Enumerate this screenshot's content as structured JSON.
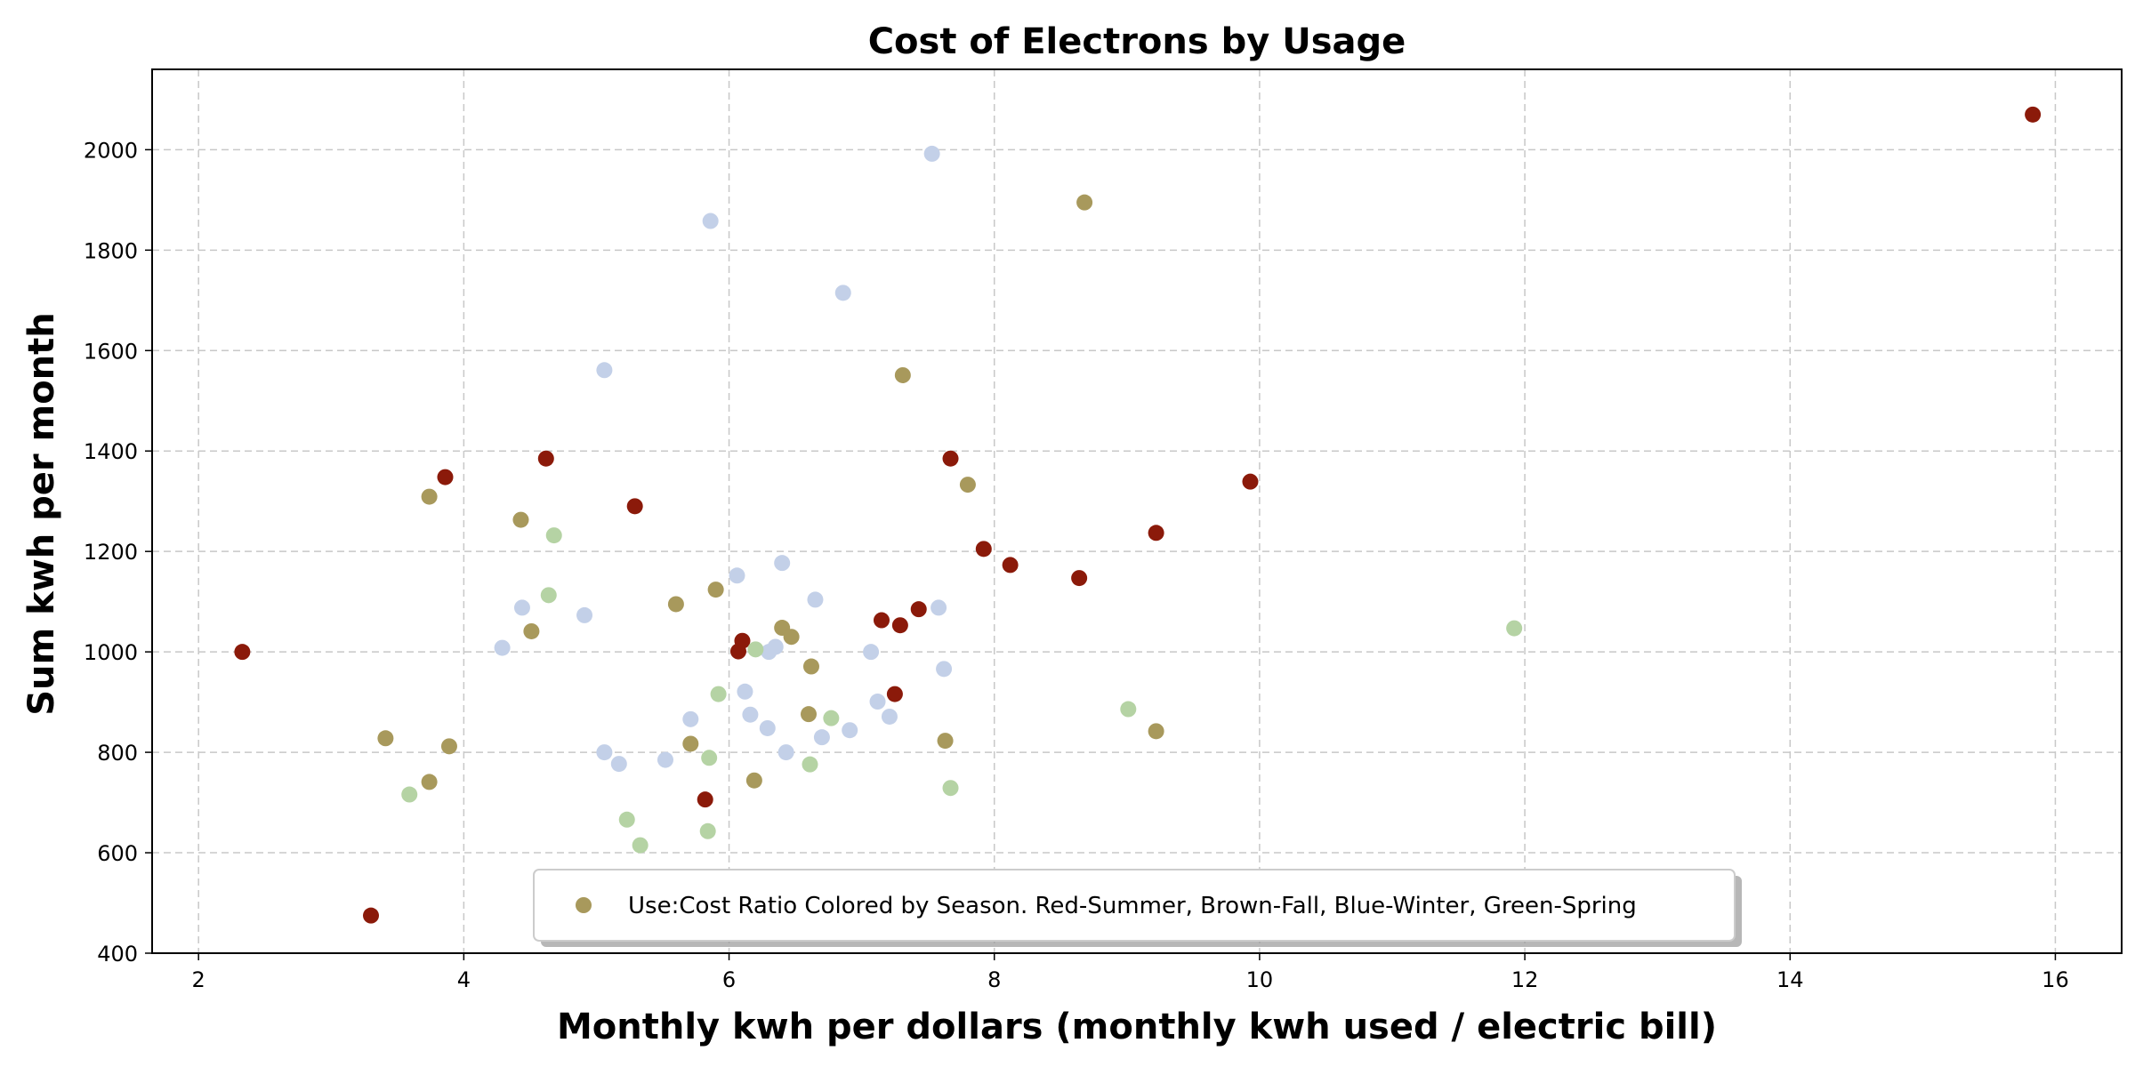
{
  "chart_data": {
    "type": "scatter",
    "title": "Cost of Electrons by Usage",
    "xlabel": "Monthly kwh per dollars (monthly kwh used / electric bill)",
    "ylabel": "Sum kwh per month",
    "xlim": [
      1.65,
      16.5
    ],
    "ylim": [
      400,
      2160
    ],
    "xticks": [
      2,
      4,
      6,
      8,
      10,
      12,
      14,
      16
    ],
    "yticks": [
      400,
      600,
      800,
      1000,
      1200,
      1400,
      1600,
      1800,
      2000
    ],
    "grid": true,
    "legend": {
      "placement": "lower-center",
      "entries": [
        {
          "label": "Use:Cost Ratio Colored by Season. Red-Summer, Brown-Fall, Blue-Winter, Green-Spring",
          "color": "#a8995c"
        }
      ]
    },
    "colors": {
      "summer": "#8b1a0a",
      "fall": "#a8995c",
      "winter": "#c3d0e8",
      "spring": "#b5d3a4"
    },
    "series": [
      {
        "season": "summer",
        "color": "#8b1a0a",
        "points": [
          {
            "x": 2.33,
            "y": 1000
          },
          {
            "x": 3.3,
            "y": 475
          },
          {
            "x": 3.86,
            "y": 1348
          },
          {
            "x": 4.62,
            "y": 1385
          },
          {
            "x": 5.29,
            "y": 1290
          },
          {
            "x": 5.82,
            "y": 706
          },
          {
            "x": 6.07,
            "y": 1001
          },
          {
            "x": 6.1,
            "y": 1022
          },
          {
            "x": 7.15,
            "y": 1063
          },
          {
            "x": 7.25,
            "y": 916
          },
          {
            "x": 7.29,
            "y": 1053
          },
          {
            "x": 7.43,
            "y": 1085
          },
          {
            "x": 7.67,
            "y": 1385
          },
          {
            "x": 7.92,
            "y": 1205
          },
          {
            "x": 8.12,
            "y": 1173
          },
          {
            "x": 8.64,
            "y": 1147
          },
          {
            "x": 9.22,
            "y": 1237
          },
          {
            "x": 9.93,
            "y": 1339
          },
          {
            "x": 15.83,
            "y": 2070
          }
        ]
      },
      {
        "season": "fall",
        "color": "#a8995c",
        "points": [
          {
            "x": 3.41,
            "y": 828
          },
          {
            "x": 3.74,
            "y": 741
          },
          {
            "x": 3.74,
            "y": 1309
          },
          {
            "x": 3.89,
            "y": 812
          },
          {
            "x": 4.43,
            "y": 1263
          },
          {
            "x": 4.51,
            "y": 1041
          },
          {
            "x": 5.6,
            "y": 1095
          },
          {
            "x": 5.71,
            "y": 817
          },
          {
            "x": 5.9,
            "y": 1124
          },
          {
            "x": 6.19,
            "y": 744
          },
          {
            "x": 6.4,
            "y": 1048
          },
          {
            "x": 6.47,
            "y": 1030
          },
          {
            "x": 6.6,
            "y": 876
          },
          {
            "x": 6.62,
            "y": 971
          },
          {
            "x": 7.31,
            "y": 1551
          },
          {
            "x": 7.63,
            "y": 823
          },
          {
            "x": 7.8,
            "y": 1333
          },
          {
            "x": 8.68,
            "y": 1895
          },
          {
            "x": 9.22,
            "y": 842
          }
        ]
      },
      {
        "season": "winter",
        "color": "#c3d0e8",
        "points": [
          {
            "x": 4.29,
            "y": 1008
          },
          {
            "x": 4.44,
            "y": 1088
          },
          {
            "x": 4.91,
            "y": 1073
          },
          {
            "x": 5.06,
            "y": 1561
          },
          {
            "x": 5.06,
            "y": 800
          },
          {
            "x": 5.17,
            "y": 777
          },
          {
            "x": 5.52,
            "y": 785
          },
          {
            "x": 5.71,
            "y": 866
          },
          {
            "x": 5.86,
            "y": 1858
          },
          {
            "x": 6.06,
            "y": 1152
          },
          {
            "x": 6.12,
            "y": 921
          },
          {
            "x": 6.16,
            "y": 875
          },
          {
            "x": 6.29,
            "y": 848
          },
          {
            "x": 6.3,
            "y": 1000
          },
          {
            "x": 6.35,
            "y": 1010
          },
          {
            "x": 6.4,
            "y": 1177
          },
          {
            "x": 6.43,
            "y": 800
          },
          {
            "x": 6.65,
            "y": 1104
          },
          {
            "x": 6.7,
            "y": 830
          },
          {
            "x": 6.86,
            "y": 1715
          },
          {
            "x": 6.91,
            "y": 844
          },
          {
            "x": 7.07,
            "y": 1000
          },
          {
            "x": 7.12,
            "y": 901
          },
          {
            "x": 7.21,
            "y": 871
          },
          {
            "x": 7.53,
            "y": 1992
          },
          {
            "x": 7.58,
            "y": 1088
          },
          {
            "x": 7.62,
            "y": 966
          }
        ]
      },
      {
        "season": "spring",
        "color": "#b5d3a4",
        "points": [
          {
            "x": 3.59,
            "y": 716
          },
          {
            "x": 4.64,
            "y": 1113
          },
          {
            "x": 4.68,
            "y": 1232
          },
          {
            "x": 5.23,
            "y": 666
          },
          {
            "x": 5.33,
            "y": 615
          },
          {
            "x": 5.84,
            "y": 643
          },
          {
            "x": 5.85,
            "y": 789
          },
          {
            "x": 5.92,
            "y": 916
          },
          {
            "x": 6.2,
            "y": 1005
          },
          {
            "x": 6.61,
            "y": 776
          },
          {
            "x": 6.77,
            "y": 868
          },
          {
            "x": 7.67,
            "y": 729
          },
          {
            "x": 9.01,
            "y": 886
          },
          {
            "x": 11.92,
            "y": 1047
          }
        ]
      }
    ]
  }
}
